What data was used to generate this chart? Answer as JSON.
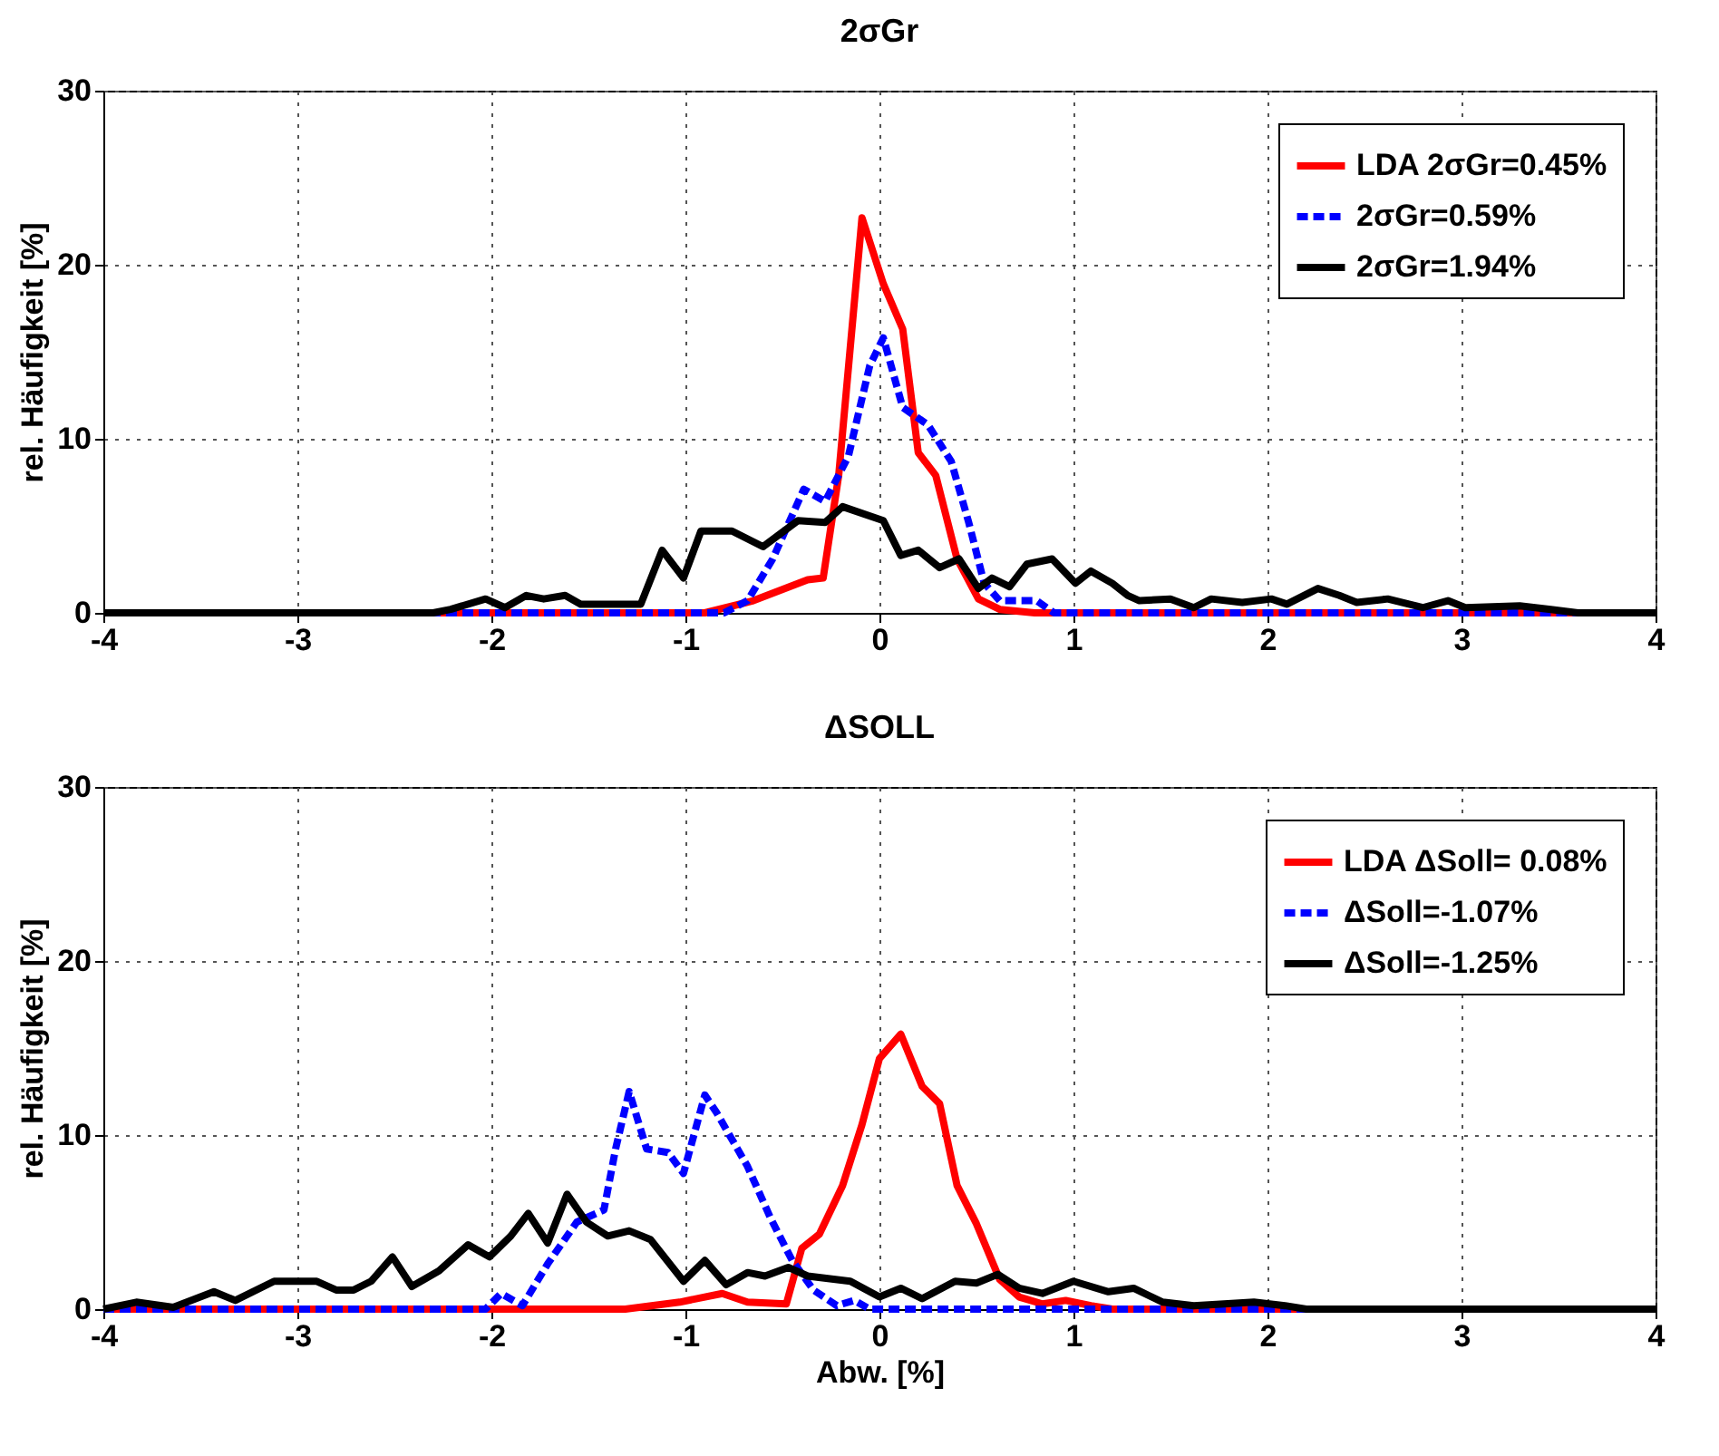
{
  "chart_data": [
    {
      "type": "line",
      "title": "2σGr",
      "ylabel": "rel. Häufigkeit [%]",
      "xlim": [
        -4,
        4
      ],
      "xticks": [
        -4,
        -3,
        -2,
        -1,
        0,
        1,
        2,
        3,
        4
      ],
      "ylim": [
        0,
        30
      ],
      "yticks": [
        0,
        10,
        20,
        30
      ],
      "grid": true,
      "legend": "top right",
      "series": [
        {
          "name": "LDA 2σGr=0.45%",
          "color": "#ff0000",
          "line_style": "solid",
          "x": [
            -4,
            -0.9,
            -0.65,
            -0.37,
            -0.29,
            -0.21,
            -0.09,
            0.02,
            0.12,
            0.2,
            0.29,
            0.4,
            0.51,
            0.62,
            0.8,
            4
          ],
          "values": [
            0,
            0,
            0.7,
            1.9,
            2,
            7.9,
            22.7,
            18.9,
            16.3,
            9.2,
            7.9,
            3.1,
            0.8,
            0.2,
            0,
            0
          ]
        },
        {
          "name": "2σGr=0.59%",
          "color": "#0000ff",
          "line_style": "dashed",
          "x": [
            -4,
            -0.8,
            -0.68,
            -0.55,
            -0.39,
            -0.28,
            -0.16,
            -0.05,
            0.02,
            0.12,
            0.25,
            0.37,
            0.46,
            0.54,
            0.62,
            0.81,
            0.9,
            4
          ],
          "values": [
            0,
            0,
            0.7,
            3.1,
            7.1,
            6.4,
            9,
            14.2,
            15.8,
            11.8,
            10.8,
            8.7,
            5.2,
            1.7,
            0.7,
            0.7,
            0,
            0
          ]
        },
        {
          "name": "2σGr=1.94%",
          "color": "#000000",
          "line_style": "solid",
          "x": [
            -4,
            -2.3,
            -2.21,
            -2.03,
            -1.93,
            -1.82,
            -1.73,
            -1.62,
            -1.54,
            -1.23,
            -1.12,
            -1.01,
            -0.92,
            -0.76,
            -0.6,
            -0.42,
            -0.28,
            -0.19,
            0.02,
            0.11,
            0.2,
            0.31,
            0.41,
            0.51,
            0.58,
            0.67,
            0.76,
            0.89,
            1.01,
            1.09,
            1.2,
            1.28,
            1.34,
            1.5,
            1.62,
            1.71,
            1.87,
            2.02,
            2.1,
            2.26,
            2.37,
            2.46,
            2.62,
            2.8,
            2.93,
            3.02,
            3.3,
            3.46,
            3.6,
            4
          ],
          "values": [
            0,
            0,
            0.2,
            0.8,
            0.3,
            1,
            0.8,
            1,
            0.5,
            0.5,
            3.6,
            2,
            4.7,
            4.7,
            3.8,
            5.3,
            5.2,
            6.1,
            5.3,
            3.3,
            3.6,
            2.6,
            3.1,
            1.4,
            2,
            1.5,
            2.8,
            3.1,
            1.7,
            2.4,
            1.7,
            1,
            0.7,
            0.8,
            0.3,
            0.8,
            0.6,
            0.8,
            0.5,
            1.4,
            1,
            0.6,
            0.8,
            0.3,
            0.7,
            0.3,
            0.4,
            0.2,
            0,
            0
          ]
        }
      ]
    },
    {
      "type": "line",
      "title": "ΔSOLL",
      "xlabel": "Abw. [%]",
      "ylabel": "rel. Häufigkeit [%]",
      "xlim": [
        -4,
        4
      ],
      "xticks": [
        -4,
        -3,
        -2,
        -1,
        0,
        1,
        2,
        3,
        4
      ],
      "ylim": [
        0,
        30
      ],
      "yticks": [
        0,
        10,
        20,
        30
      ],
      "grid": true,
      "legend": "top right",
      "series": [
        {
          "name": "LDA ΔSoll= 0.08%",
          "color": "#ff0000",
          "line_style": "solid",
          "x": [
            -4,
            -1.31,
            -1.03,
            -0.81,
            -0.68,
            -0.48,
            -0.4,
            -0.31,
            -0.19,
            -0.09,
            0,
            0.11,
            0.22,
            0.31,
            0.4,
            0.5,
            0.62,
            0.72,
            0.84,
            0.96,
            1.09,
            1.2,
            4
          ],
          "values": [
            0,
            0,
            0.4,
            0.9,
            0.4,
            0.3,
            3.5,
            4.3,
            7.1,
            10.6,
            14.4,
            15.8,
            12.8,
            11.8,
            7.1,
            4.9,
            1.7,
            0.7,
            0.3,
            0.5,
            0.2,
            0,
            0
          ]
        },
        {
          "name": "ΔSoll=-1.07%",
          "color": "#0000ff",
          "line_style": "dashed",
          "x": [
            -4,
            -2.03,
            -1.95,
            -1.84,
            -1.71,
            -1.56,
            -1.42,
            -1.36,
            -1.29,
            -1.2,
            -1.09,
            -1.01,
            -0.9,
            -0.84,
            -0.68,
            -0.56,
            -0.45,
            -0.34,
            -0.22,
            -0.13,
            -0.05,
            4
          ],
          "values": [
            0,
            0,
            0.9,
            0.2,
            2.6,
            5,
            5.7,
            9.2,
            12.5,
            9.2,
            9,
            7.8,
            12.3,
            11.3,
            8.2,
            5.2,
            2.8,
            1.1,
            0.2,
            0.5,
            0,
            0
          ]
        },
        {
          "name": "ΔSoll=-1.25%",
          "color": "#000000",
          "line_style": "solid",
          "x": [
            -4,
            -3.83,
            -3.64,
            -3.43,
            -3.32,
            -3.12,
            -2.9,
            -2.8,
            -2.71,
            -2.62,
            -2.51,
            -2.41,
            -2.27,
            -2.12,
            -2.01,
            -1.9,
            -1.81,
            -1.71,
            -1.61,
            -1.51,
            -1.4,
            -1.29,
            -1.18,
            -1.01,
            -0.9,
            -0.79,
            -0.68,
            -0.59,
            -0.47,
            -0.37,
            -0.15,
            0,
            0.11,
            0.22,
            0.39,
            0.5,
            0.61,
            0.72,
            0.84,
            1,
            1.18,
            1.31,
            1.46,
            1.62,
            1.93,
            2.09,
            2.2,
            4
          ],
          "values": [
            0,
            0.4,
            0.1,
            1,
            0.5,
            1.6,
            1.6,
            1.1,
            1.1,
            1.6,
            3,
            1.3,
            2.2,
            3.7,
            3,
            4.2,
            5.5,
            3.8,
            6.6,
            5,
            4.2,
            4.5,
            4,
            1.6,
            2.8,
            1.4,
            2.1,
            1.9,
            2.4,
            1.9,
            1.6,
            0.7,
            1.2,
            0.6,
            1.6,
            1.5,
            2,
            1.2,
            0.9,
            1.6,
            1,
            1.2,
            0.4,
            0.2,
            0.4,
            0.2,
            0,
            0
          ]
        }
      ]
    }
  ]
}
